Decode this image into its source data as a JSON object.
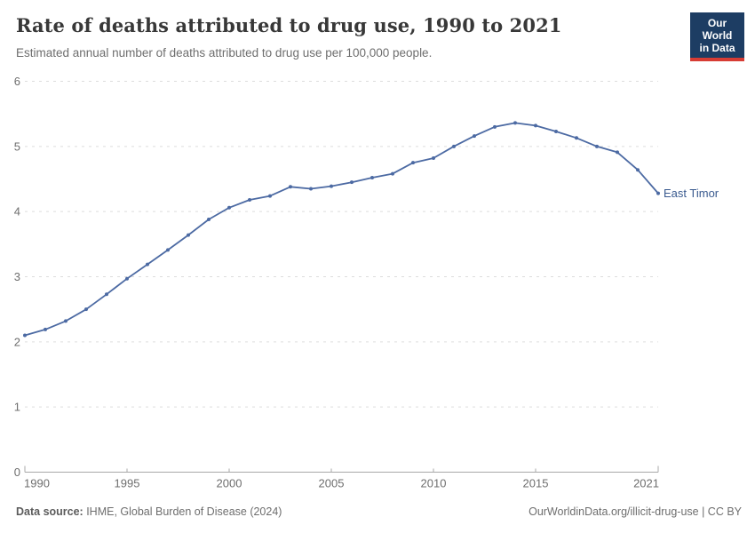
{
  "header": {
    "title": "Rate of deaths attributed to drug use, 1990 to 2021",
    "subtitle": "Estimated annual number of deaths attributed to drug use per 100,000 people.",
    "logo": {
      "line1": "Our World",
      "line2": "in Data",
      "bg_color": "#1d3d63",
      "accent_color": "#d73c34"
    }
  },
  "chart_data": {
    "type": "line",
    "title": "Rate of deaths attributed to drug use, 1990 to 2021",
    "xlabel": "",
    "ylabel": "",
    "xlim": [
      1990,
      2021
    ],
    "ylim": [
      0,
      6
    ],
    "yticks": [
      0,
      1,
      2,
      3,
      4,
      5,
      6
    ],
    "xticks": [
      1990,
      1995,
      2000,
      2005,
      2010,
      2015,
      2021
    ],
    "grid": "horizontal-dashed",
    "gridline_color": "#dddddd",
    "axis_color": "#a8a8a8",
    "tick_label_color": "#6e6e6e",
    "legend_position": "line-end-label",
    "series": [
      {
        "name": "East Timor",
        "color": "#4c6aa3",
        "label_color": "#3a5a8f",
        "x": [
          1990,
          1991,
          1992,
          1993,
          1994,
          1995,
          1996,
          1997,
          1998,
          1999,
          2000,
          2001,
          2002,
          2003,
          2004,
          2005,
          2006,
          2007,
          2008,
          2009,
          2010,
          2011,
          2012,
          2013,
          2014,
          2015,
          2016,
          2017,
          2018,
          2019,
          2020,
          2021
        ],
        "values": [
          2.1,
          2.19,
          2.32,
          2.5,
          2.73,
          2.97,
          3.19,
          3.41,
          3.64,
          3.88,
          4.06,
          4.18,
          4.24,
          4.38,
          4.35,
          4.39,
          4.45,
          4.52,
          4.58,
          4.75,
          4.82,
          5.0,
          5.16,
          5.3,
          5.36,
          5.32,
          5.23,
          5.13,
          5.0,
          4.91,
          4.64,
          4.28
        ]
      }
    ]
  },
  "footer": {
    "source_label": "Data source:",
    "source_value": " IHME, Global Burden of Disease (2024)",
    "link": "OurWorldinData.org/illicit-drug-use | CC BY"
  }
}
